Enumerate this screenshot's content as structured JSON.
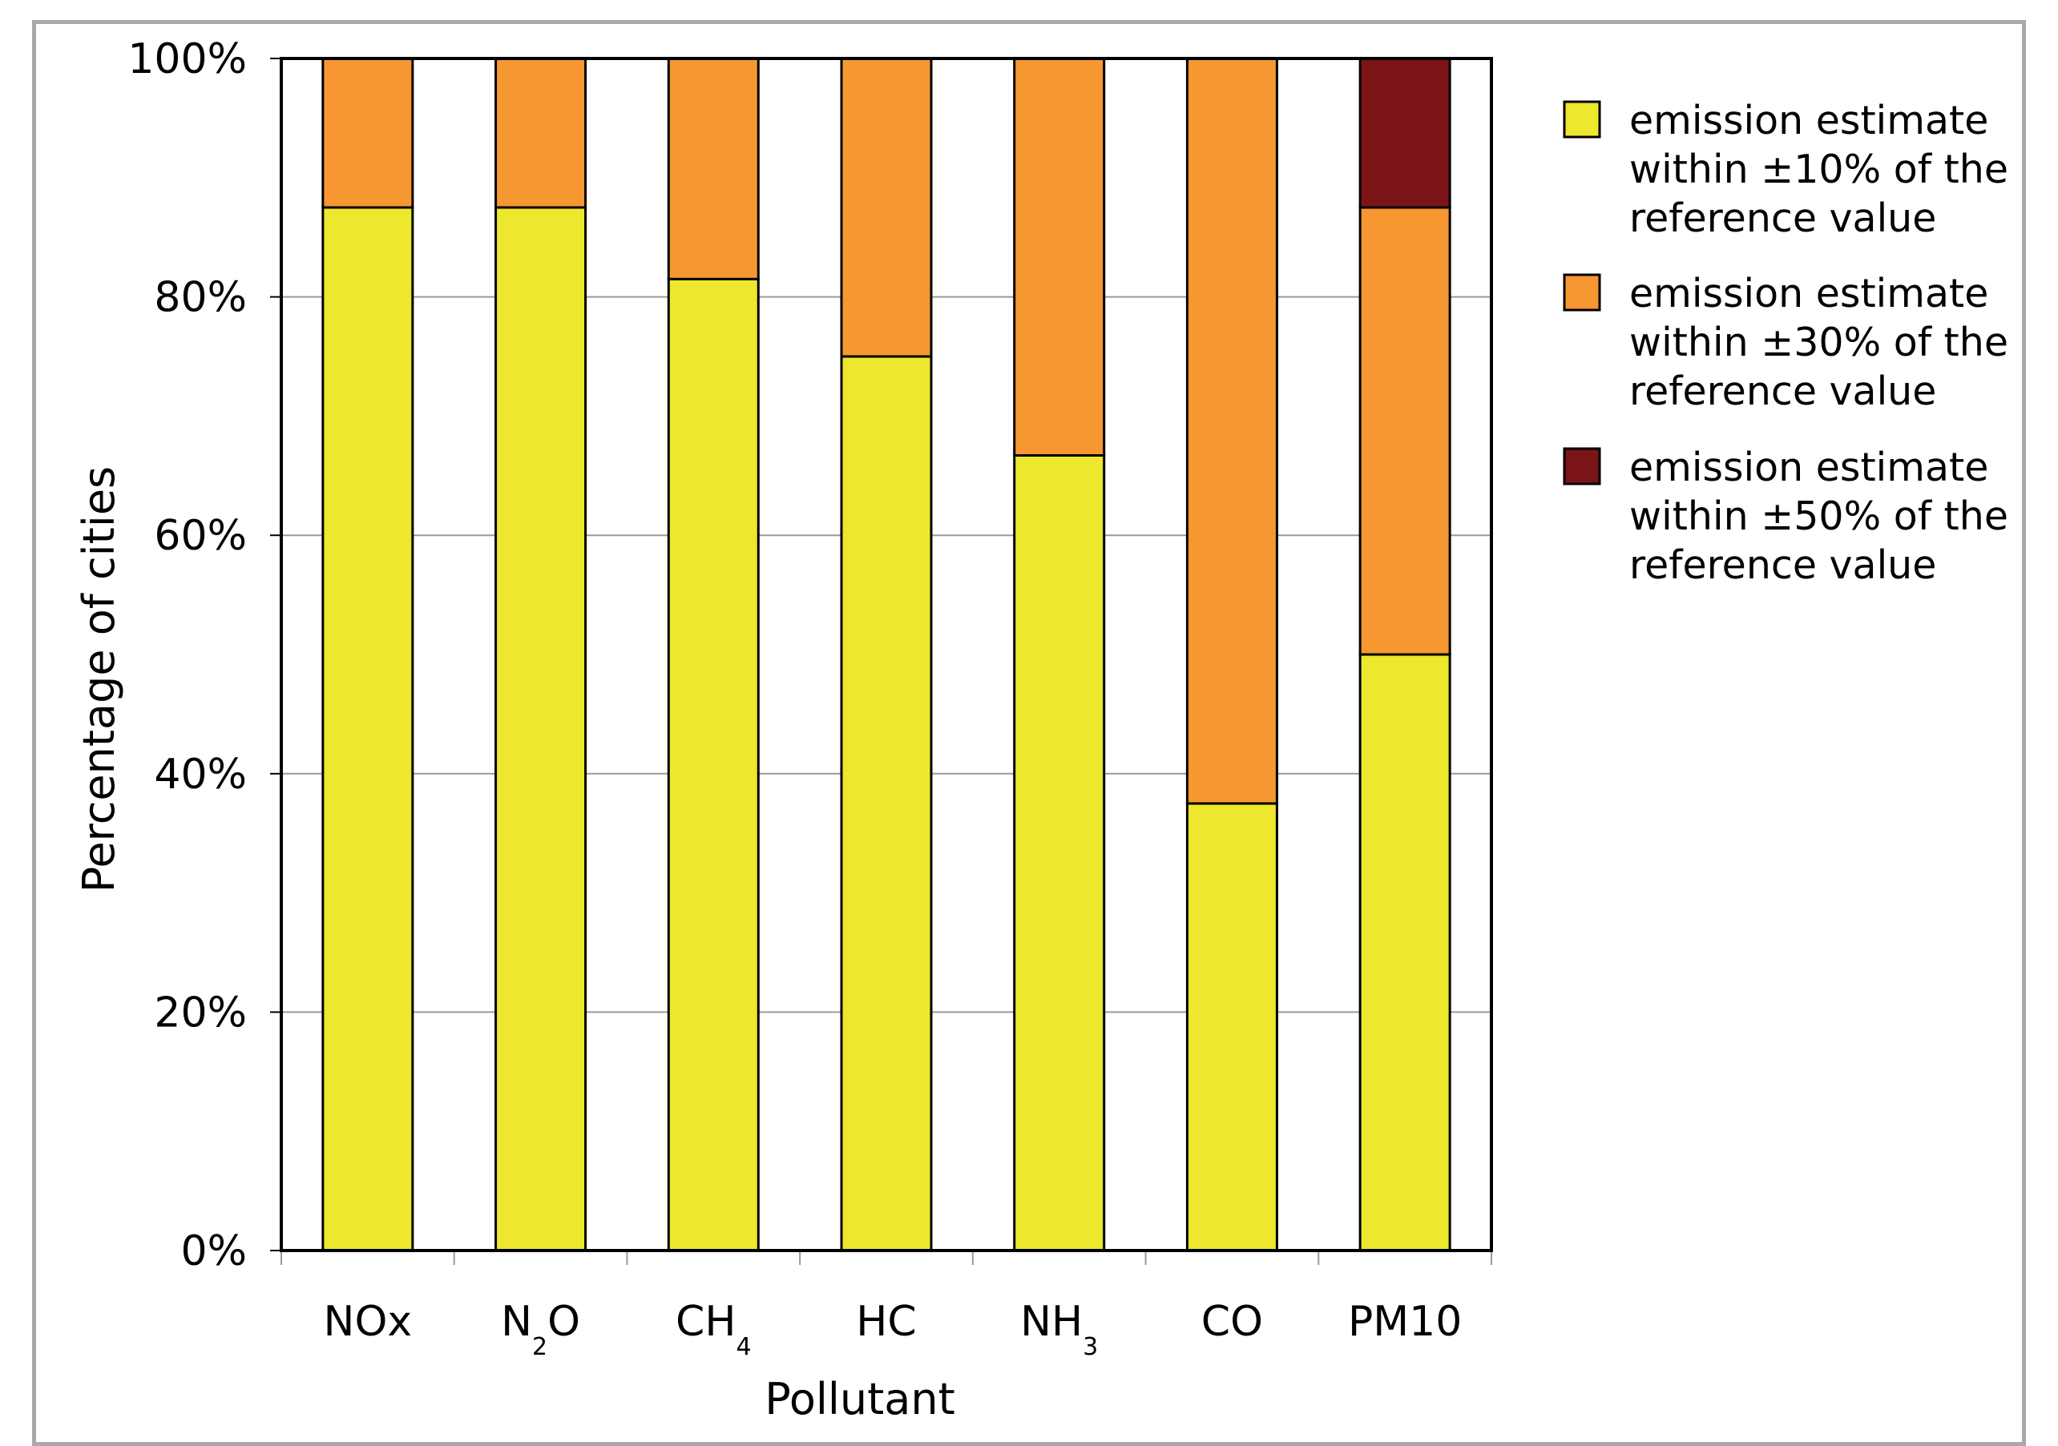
{
  "chart_data": {
    "type": "bar",
    "stacked": true,
    "title": "",
    "xlabel": "Pollutant",
    "ylabel": "Percentage of cities",
    "ylim": [
      0,
      100
    ],
    "y_unit": "%",
    "yticks": [
      "0%",
      "20%",
      "40%",
      "60%",
      "80%",
      "100%"
    ],
    "grid": true,
    "legend_position": "right",
    "categories": [
      {
        "main": "NOx",
        "sub": "",
        "tail": ""
      },
      {
        "main": "N",
        "sub": "2",
        "tail": "O"
      },
      {
        "main": "CH",
        "sub": "4",
        "tail": ""
      },
      {
        "main": "HC",
        "sub": "",
        "tail": ""
      },
      {
        "main": "NH",
        "sub": "3",
        "tail": ""
      },
      {
        "main": "CO",
        "sub": "",
        "tail": ""
      },
      {
        "main": "PM10",
        "sub": "",
        "tail": ""
      }
    ],
    "series": [
      {
        "key": "within10",
        "legend_lines": [
          "emission estimate",
          "within ±10% of the",
          "reference value"
        ],
        "color": "#ede72e",
        "values": [
          87.5,
          87.5,
          81.5,
          75,
          66.7,
          37.5,
          50
        ]
      },
      {
        "key": "within30",
        "legend_lines": [
          "emission estimate",
          "within ±30% of the",
          "reference value"
        ],
        "color": "#f69732",
        "values": [
          12.5,
          12.5,
          18.5,
          25,
          33.3,
          62.5,
          37.5
        ]
      },
      {
        "key": "within50",
        "legend_lines": [
          "emission estimate",
          "within ±50% of the",
          "reference value"
        ],
        "color": "#7b1416",
        "values": [
          0,
          0,
          0,
          0,
          0,
          0,
          12.5
        ]
      }
    ]
  }
}
